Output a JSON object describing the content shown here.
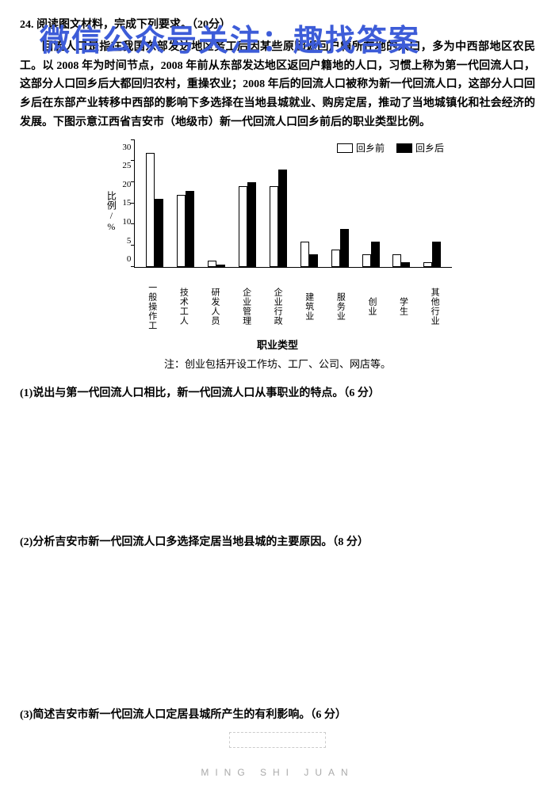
{
  "watermark": "微信公众号关注：趣找答案",
  "question_number": "24.",
  "question_title": "阅读图文材料，完成下列要求。（20分）",
  "paragraph": "回流人口是指在我国东部发达地区务工后因某些原因返回户籍所在地的人口，多为中西部地区农民工。以 2008 年为时间节点，2008 年前从东部发达地区返回户籍地的人口，习惯上称为第一代回流人口，这部分人口回乡后大都回归农村，重操农业；2008 年后的回流人口被称为新一代回流人口，这部分人口回乡后在东部产业转移中西部的影响下多选择在当地县城就业、购房定居，推动了当地城镇化和社会经济的发展。下图示意江西省吉安市（地级市）新一代回流人口回乡前后的职业类型比例。",
  "chart": {
    "type": "bar",
    "y_label": "比例/%",
    "y_max": 30,
    "y_ticks": [
      0,
      5,
      10,
      15,
      20,
      25,
      30
    ],
    "x_title": "职业类型",
    "note": "注：创业包括开设工作坊、工厂、公司、网店等。",
    "legend_before": "回乡前",
    "legend_after": "回乡后",
    "categories": [
      {
        "label": "一般操作工",
        "before": 27,
        "after": 16
      },
      {
        "label": "技术工人",
        "before": 17,
        "after": 18
      },
      {
        "label": "研发人员",
        "before": 1.5,
        "after": 0.5
      },
      {
        "label": "企业管理",
        "before": 19,
        "after": 20
      },
      {
        "label": "企业行政",
        "before": 19,
        "after": 23
      },
      {
        "label": "建筑业",
        "before": 6,
        "after": 3
      },
      {
        "label": "服务业",
        "before": 4,
        "after": 9
      },
      {
        "label": "创业",
        "before": 3,
        "after": 6
      },
      {
        "label": "学生",
        "before": 3,
        "after": 1
      },
      {
        "label": "其他行业",
        "before": 1,
        "after": 6
      }
    ],
    "bar_color_before": "#ffffff",
    "bar_color_after": "#000000",
    "border_color": "#000000"
  },
  "sub_questions": {
    "q1": "(1)说出与第一代回流人口相比，新一代回流人口从事职业的特点。（6 分）",
    "q2": "(2)分析吉安市新一代回流人口多选择定居当地县城的主要原因。（8 分）",
    "q3": "(3)简述吉安市新一代回流人口定居县城所产生的有利影响。（6 分）"
  },
  "footer": "MING SHI JUAN"
}
